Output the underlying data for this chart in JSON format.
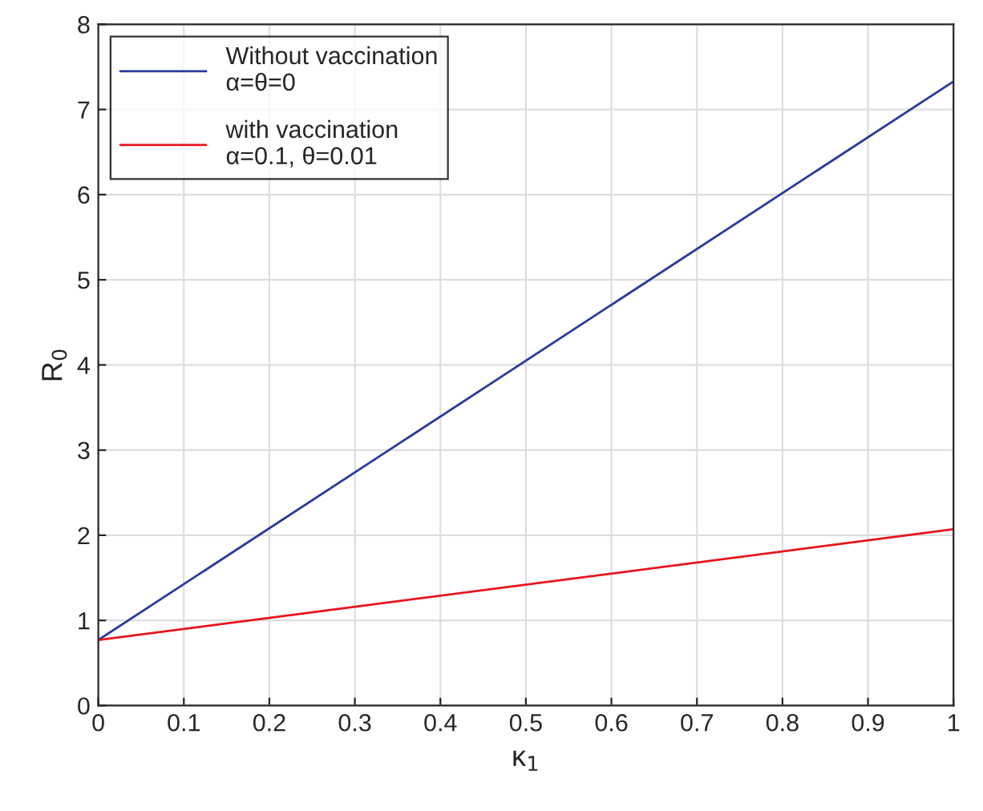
{
  "chart_data": {
    "type": "line",
    "xlabel": "κ$_{1}$",
    "ylabel": "R$_{0}$",
    "x": [
      0,
      1
    ],
    "series": [
      {
        "name": "Without vaccination\nα=θ=0",
        "color": "#2b3a9c",
        "values": [
          0.77,
          7.33
        ]
      },
      {
        "name": "with vaccination\nα=0.1, θ=0.01",
        "color": "#e8141c",
        "values": [
          0.77,
          2.07
        ]
      }
    ],
    "xlim": [
      0,
      1
    ],
    "xticks": [
      0,
      0.1,
      0.2,
      0.3,
      0.4,
      0.5,
      0.6,
      0.7,
      0.8,
      0.9,
      1
    ],
    "ylim": [
      0,
      8
    ],
    "yticks": [
      0,
      1,
      2,
      3,
      4,
      5,
      6,
      7,
      8
    ],
    "grid": true,
    "legend": "top left",
    "marker": "none",
    "line_style": "solid"
  }
}
